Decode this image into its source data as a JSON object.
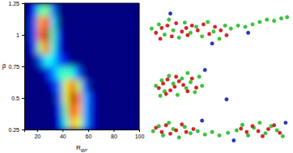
{
  "chart_data": [
    {
      "type": "heatmap",
      "x_label": "Rgyr",
      "y_label": "β",
      "xlim": [
        10,
        100
      ],
      "ylim": [
        0.25,
        1.25
      ],
      "xticks": [
        20,
        40,
        60,
        80,
        100
      ],
      "yticks": [
        0.25,
        0.5,
        0.75,
        1,
        1.25
      ],
      "x_bins": [
        10,
        15,
        20,
        25,
        30,
        35,
        40,
        45,
        50,
        55,
        60,
        65,
        70,
        75,
        80,
        85,
        90,
        95,
        100
      ],
      "y_bins": [
        0.25,
        0.35,
        0.45,
        0.55,
        0.65,
        0.75,
        0.85,
        0.95,
        1.05,
        1.15,
        1.25
      ],
      "color_range": [
        0,
        1
      ],
      "cells": [
        [
          0,
          0,
          0,
          0,
          0,
          0.1,
          0.4,
          0.7,
          0.6,
          0.3,
          0.1,
          0,
          0,
          0,
          0,
          0,
          0,
          0
        ],
        [
          0,
          0,
          0,
          0,
          0,
          0.15,
          0.5,
          0.85,
          0.7,
          0.3,
          0.1,
          0,
          0,
          0,
          0,
          0,
          0,
          0
        ],
        [
          0,
          0,
          0,
          0,
          0,
          0.2,
          0.6,
          0.95,
          0.75,
          0.3,
          0.1,
          0,
          0,
          0,
          0,
          0,
          0,
          0
        ],
        [
          0,
          0,
          0,
          0,
          0.1,
          0.25,
          0.6,
          0.8,
          0.55,
          0.2,
          0,
          0,
          0,
          0,
          0,
          0,
          0,
          0
        ],
        [
          0,
          0,
          0,
          0.1,
          0.25,
          0.4,
          0.45,
          0.4,
          0.2,
          0,
          0,
          0,
          0,
          0,
          0,
          0,
          0,
          0
        ],
        [
          0,
          0,
          0.2,
          0.4,
          0.35,
          0.2,
          0.1,
          0,
          0,
          0,
          0,
          0,
          0,
          0,
          0,
          0,
          0,
          0
        ],
        [
          0,
          0.15,
          0.55,
          0.8,
          0.4,
          0.1,
          0,
          0,
          0,
          0,
          0,
          0,
          0,
          0,
          0,
          0,
          0,
          0
        ],
        [
          0,
          0.2,
          0.75,
          0.95,
          0.45,
          0.1,
          0,
          0,
          0,
          0,
          0,
          0,
          0,
          0,
          0,
          0,
          0,
          0
        ],
        [
          0,
          0.2,
          0.7,
          0.85,
          0.35,
          0,
          0,
          0,
          0,
          0,
          0,
          0,
          0,
          0,
          0,
          0,
          0,
          0
        ],
        [
          0,
          0.15,
          0.45,
          0.5,
          0.25,
          0,
          0,
          0,
          0,
          0,
          0,
          0,
          0,
          0,
          0,
          0,
          0,
          0
        ]
      ]
    },
    {
      "type": "scatter",
      "tick_labels": false,
      "xlim": [
        0,
        100
      ],
      "ylim": [
        0,
        100
      ],
      "series": [
        {
          "color": "#33cc33",
          "x": [
            3,
            8,
            12,
            15,
            18,
            22,
            26,
            30,
            34,
            38,
            42,
            46,
            50,
            54,
            58,
            63,
            68,
            73,
            78,
            83,
            88,
            93,
            97
          ],
          "values": [
            55,
            62,
            45,
            70,
            52,
            40,
            65,
            48,
            58,
            42,
            66,
            50,
            38,
            60,
            55,
            60,
            58,
            62,
            66,
            70,
            68,
            72,
            74
          ]
        },
        {
          "color": "#dd2222",
          "x": [
            6,
            10,
            14,
            17,
            20,
            24,
            28,
            31,
            35,
            39,
            43,
            47,
            51,
            55,
            9,
            27
          ],
          "values": [
            48,
            56,
            60,
            42,
            64,
            50,
            44,
            60,
            52,
            62,
            46,
            58,
            52,
            44,
            38,
            56
          ]
        },
        {
          "color": "#2233cc",
          "x": [
            16,
            45,
            70
          ],
          "values": [
            80,
            30,
            48
          ]
        }
      ]
    },
    {
      "type": "scatter",
      "tick_labels": false,
      "xlim": [
        0,
        100
      ],
      "ylim": [
        0,
        100
      ],
      "series": [
        {
          "color": "#33cc33",
          "x": [
            6,
            10,
            12,
            15,
            18,
            21,
            24,
            27,
            30,
            33,
            36,
            38,
            9,
            28
          ],
          "values": [
            50,
            62,
            38,
            72,
            55,
            30,
            66,
            45,
            58,
            36,
            70,
            50,
            28,
            78
          ]
        },
        {
          "color": "#dd2222",
          "x": [
            8,
            11,
            14,
            16,
            19,
            22,
            25,
            28,
            31,
            34,
            20,
            13
          ],
          "values": [
            45,
            55,
            64,
            40,
            48,
            60,
            52,
            38,
            66,
            46,
            70,
            32
          ]
        },
        {
          "color": "#2233cc",
          "x": [
            40,
            55
          ],
          "values": [
            85,
            20
          ]
        }
      ]
    },
    {
      "type": "scatter",
      "tick_labels": false,
      "xlim": [
        0,
        100
      ],
      "ylim": [
        0,
        100
      ],
      "series": [
        {
          "color": "#33cc33",
          "x": [
            4,
            8,
            11,
            15,
            18,
            22,
            26,
            30,
            35,
            40,
            45,
            50,
            56,
            62,
            66,
            70,
            74,
            78,
            82,
            86,
            90,
            94
          ],
          "values": [
            50,
            62,
            40,
            70,
            55,
            35,
            60,
            45,
            50,
            42,
            48,
            40,
            46,
            52,
            65,
            40,
            58,
            70,
            45,
            62,
            52,
            38
          ]
        },
        {
          "color": "#dd2222",
          "x": [
            6,
            10,
            13,
            16,
            20,
            24,
            27,
            32,
            65,
            69,
            73,
            77,
            80,
            84,
            88,
            92
          ],
          "values": [
            58,
            48,
            64,
            44,
            52,
            66,
            48,
            55,
            56,
            48,
            62,
            50,
            38,
            55,
            64,
            46
          ]
        },
        {
          "color": "#2233cc",
          "x": [
            38,
            60,
            96
          ],
          "values": [
            75,
            28,
            70
          ]
        }
      ]
    }
  ]
}
